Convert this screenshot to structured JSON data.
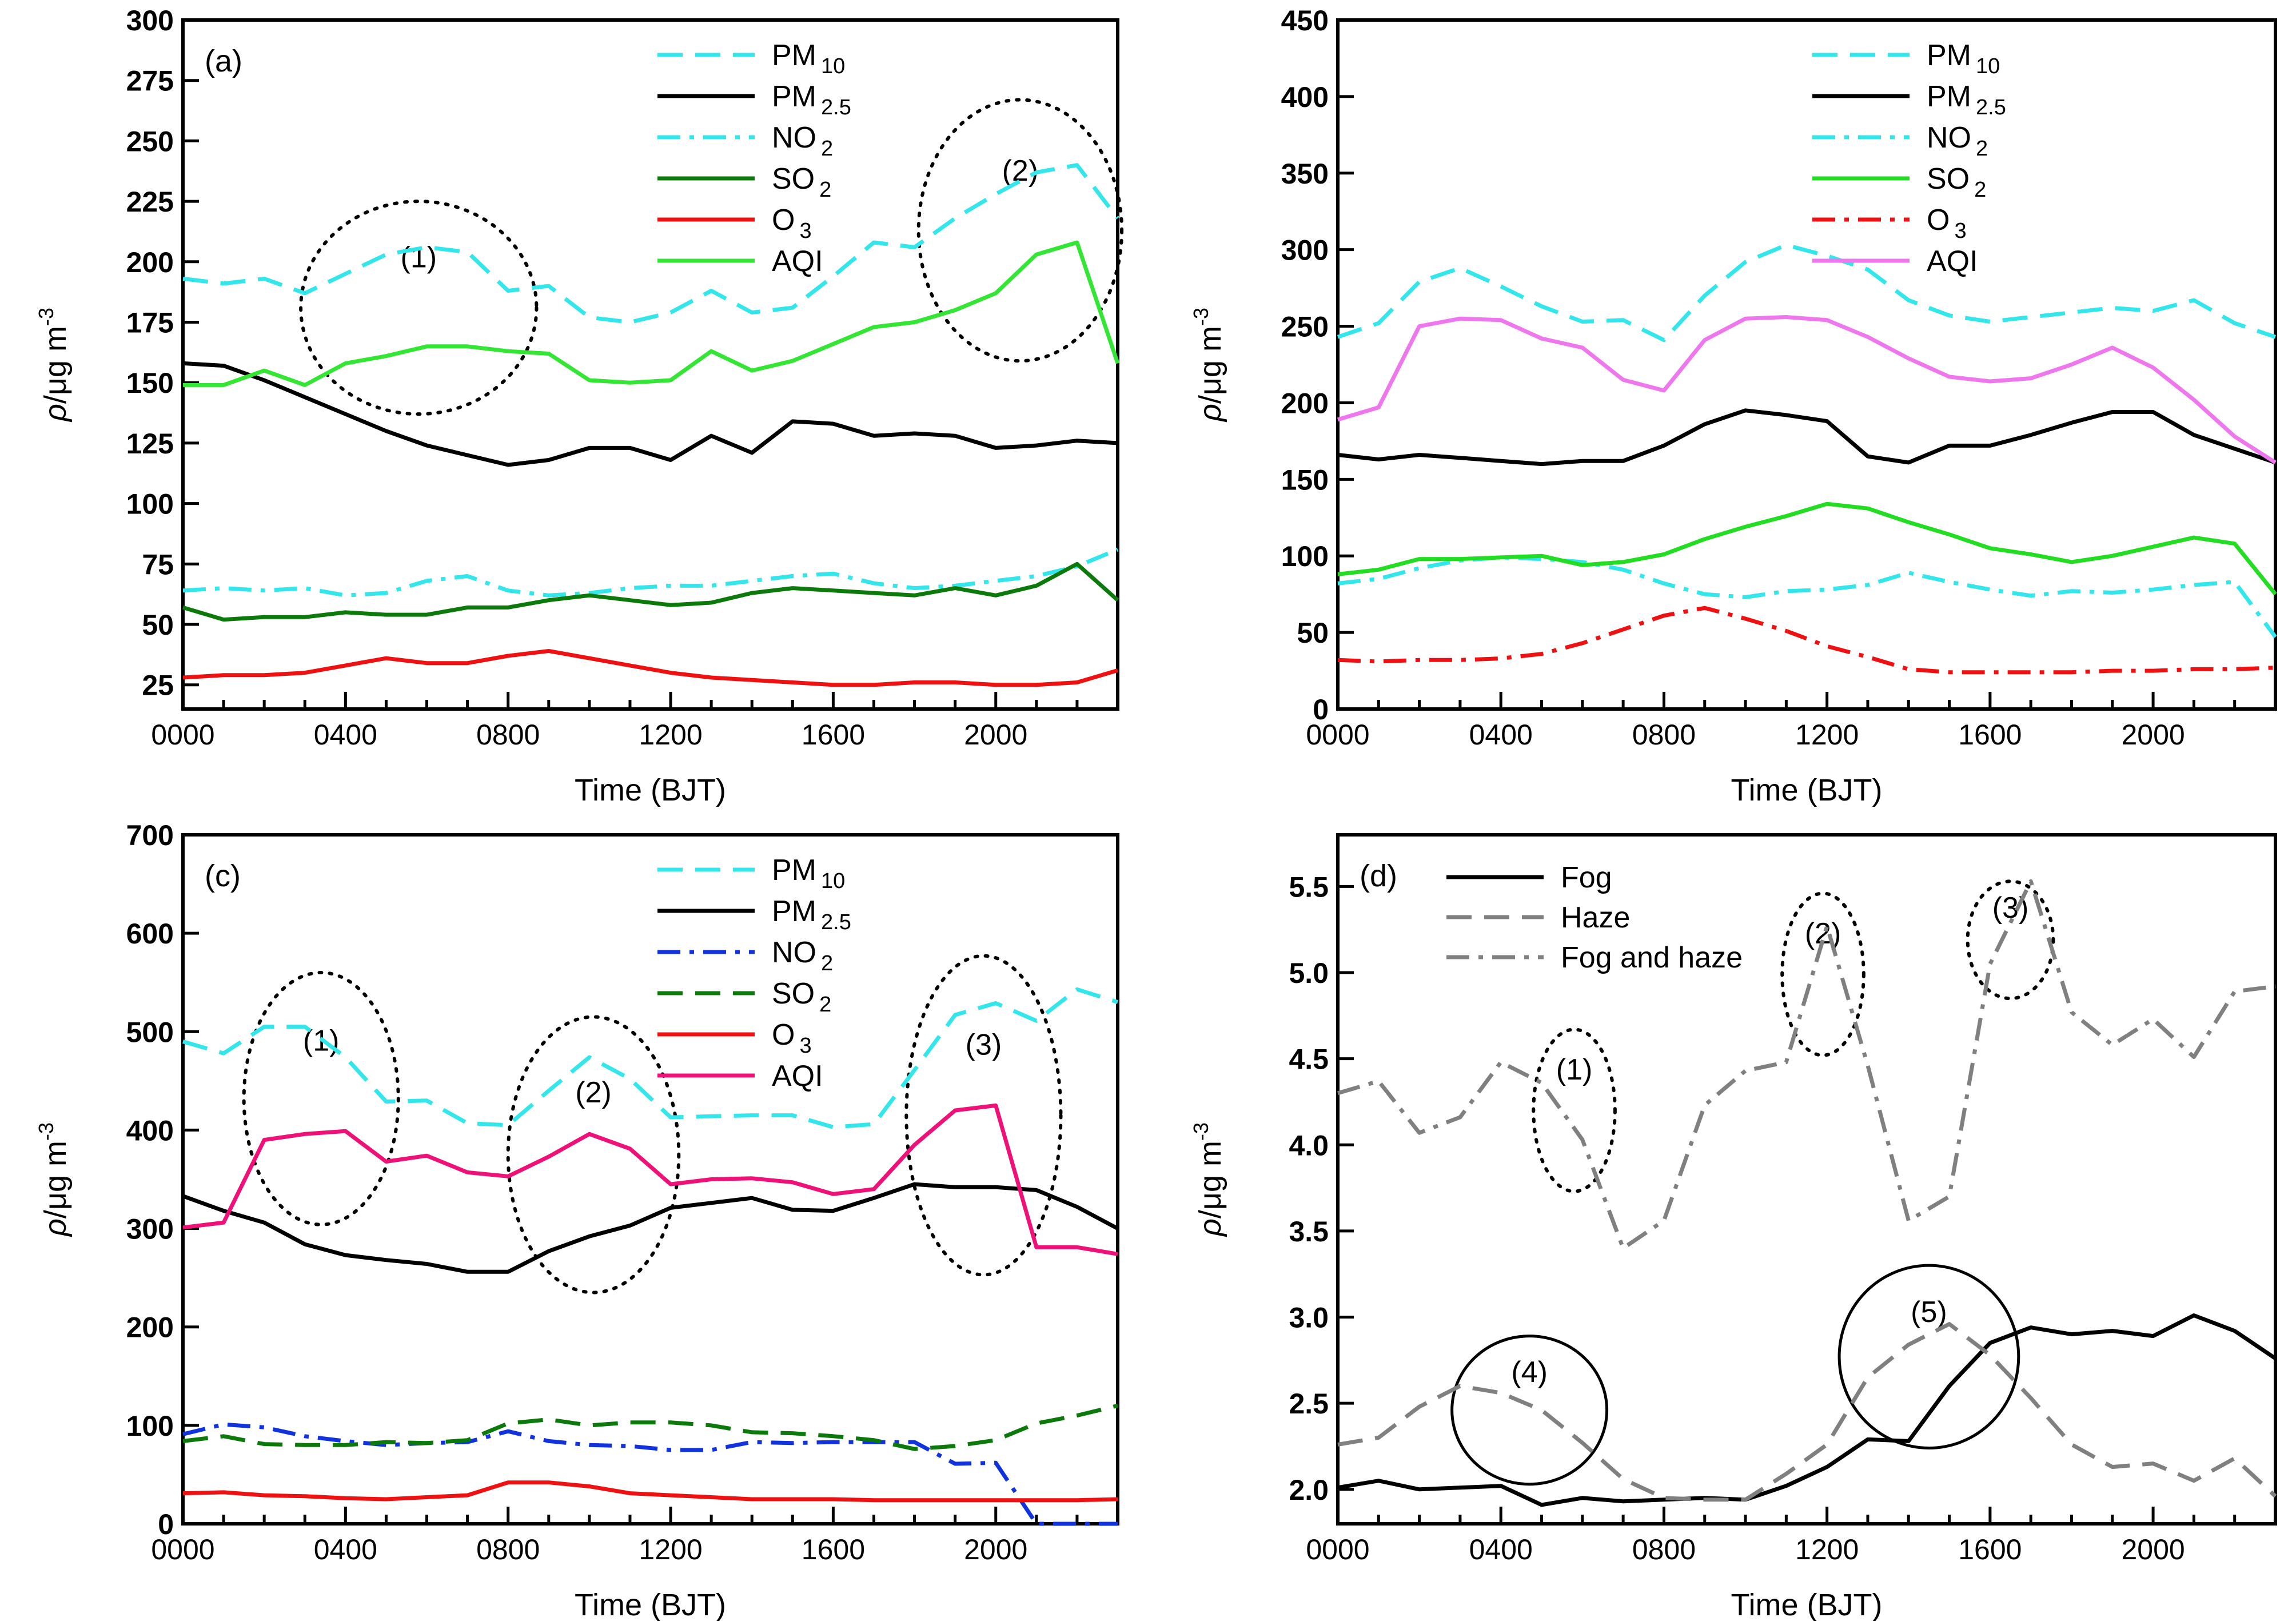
{
  "figure": {
    "panels_meta": "four line-chart panels in a 2x2 grid"
  },
  "chart_data": [
    {
      "id": "a",
      "type": "line",
      "panel_label": "(a)",
      "xlabel": "Time (BJT)",
      "ylabel_main": "ρ/μg m",
      "ylabel_sup": "-3",
      "xticks": [
        "0000",
        "0400",
        "0800",
        "1200",
        "1600",
        "2000"
      ],
      "xtick_values": [
        0,
        4,
        8,
        12,
        16,
        20
      ],
      "xlim": [
        0,
        23
      ],
      "ylim": [
        15,
        300
      ],
      "yticks": [
        25,
        50,
        75,
        100,
        125,
        150,
        175,
        200,
        225,
        250,
        275,
        300
      ],
      "x": [
        0,
        1,
        2,
        3,
        4,
        5,
        6,
        7,
        8,
        9,
        10,
        11,
        12,
        13,
        14,
        15,
        16,
        17,
        18,
        19,
        20,
        21,
        22,
        23
      ],
      "series": [
        {
          "name_main": "PM",
          "name_sub": "10",
          "color": "#33E6EC",
          "dash": "dash",
          "values": [
            193,
            191,
            193,
            187,
            195,
            203,
            206,
            204,
            188,
            190,
            177,
            175,
            179,
            188,
            179,
            181,
            194,
            208,
            206,
            218,
            228,
            237,
            240,
            218
          ]
        },
        {
          "name_main": "PM",
          "name_sub": "2.5",
          "color": "#000000",
          "dash": "solid",
          "values": [
            158,
            157,
            151,
            144,
            137,
            130,
            124,
            120,
            116,
            118,
            123,
            123,
            118,
            128,
            121,
            134,
            133,
            128,
            129,
            128,
            123,
            124,
            126,
            125
          ]
        },
        {
          "name_main": "NO",
          "name_sub": "2",
          "color": "#33E6EC",
          "dash": "dashdot",
          "values": [
            64,
            65,
            64,
            65,
            62,
            63,
            68,
            70,
            64,
            62,
            63,
            65,
            66,
            66,
            68,
            70,
            71,
            67,
            65,
            66,
            68,
            70,
            74,
            81
          ]
        },
        {
          "name_main": "SO",
          "name_sub": "2",
          "color": "#0B7A0B",
          "dash": "solid",
          "values": [
            57,
            52,
            53,
            53,
            55,
            54,
            54,
            57,
            57,
            60,
            62,
            60,
            58,
            59,
            63,
            65,
            64,
            63,
            62,
            65,
            62,
            66,
            75,
            60
          ]
        },
        {
          "name_main": "O",
          "name_sub": "3",
          "color": "#EE1111",
          "dash": "solid",
          "values": [
            28,
            29,
            29,
            30,
            33,
            36,
            34,
            34,
            37,
            39,
            36,
            33,
            30,
            28,
            27,
            26,
            25,
            25,
            26,
            26,
            25,
            25,
            26,
            31
          ]
        },
        {
          "name_main": "AQI",
          "name_sub": "",
          "color": "#33E633",
          "dash": "solid",
          "values": [
            149,
            149,
            155,
            149,
            158,
            161,
            165,
            165,
            163,
            162,
            151,
            150,
            151,
            163,
            155,
            159,
            166,
            173,
            175,
            180,
            187,
            203,
            208,
            158
          ]
        }
      ],
      "annotations": [
        {
          "label": "(1)",
          "style": "dotted",
          "cx": 5.8,
          "cy": 181,
          "rx": 2.9,
          "ry": 44
        },
        {
          "label": "(2)",
          "style": "dotted",
          "cx": 20.6,
          "cy": 213,
          "rx": 2.5,
          "ry": 54
        }
      ]
    },
    {
      "id": "b",
      "type": "line",
      "panel_label": "",
      "xlabel": "Time (BJT)",
      "ylabel_main": "ρ/μg m",
      "ylabel_sup": "-3",
      "xticks": [
        "0000",
        "0400",
        "0800",
        "1200",
        "1600",
        "2000"
      ],
      "xtick_values": [
        0,
        4,
        8,
        12,
        16,
        20
      ],
      "xlim": [
        0,
        23
      ],
      "ylim": [
        0,
        450
      ],
      "yticks": [
        0,
        50,
        100,
        150,
        200,
        250,
        300,
        350,
        400,
        450
      ],
      "x": [
        0,
        1,
        2,
        3,
        4,
        5,
        6,
        7,
        8,
        9,
        10,
        11,
        12,
        13,
        14,
        15,
        16,
        17,
        18,
        19,
        20,
        21,
        22,
        23
      ],
      "series": [
        {
          "name_main": "PM",
          "name_sub": "10",
          "color": "#33E6EC",
          "dash": "dash",
          "values": [
            243,
            252,
            279,
            288,
            276,
            263,
            253,
            254,
            241,
            270,
            292,
            303,
            296,
            287,
            267,
            257,
            253,
            256,
            259,
            262,
            260,
            267,
            252,
            243
          ]
        },
        {
          "name_main": "PM",
          "name_sub": "2.5",
          "color": "#000000",
          "dash": "solid",
          "values": [
            166,
            163,
            166,
            164,
            162,
            160,
            162,
            162,
            172,
            186,
            195,
            192,
            188,
            165,
            161,
            172,
            172,
            179,
            187,
            194,
            194,
            179,
            170,
            161
          ]
        },
        {
          "name_main": "NO",
          "name_sub": "2",
          "color": "#33E6EC",
          "dash": "dashdot",
          "values": [
            82,
            85,
            92,
            97,
            99,
            98,
            96,
            91,
            82,
            75,
            73,
            77,
            78,
            81,
            89,
            83,
            78,
            74,
            77,
            76,
            78,
            81,
            83,
            47
          ]
        },
        {
          "name_main": "SO",
          "name_sub": "2",
          "color": "#22DD22",
          "dash": "solid",
          "values": [
            88,
            91,
            98,
            98,
            99,
            100,
            94,
            96,
            101,
            111,
            119,
            126,
            134,
            131,
            122,
            114,
            105,
            101,
            96,
            100,
            106,
            112,
            108,
            75
          ]
        },
        {
          "name_main": "O",
          "name_sub": "3",
          "color": "#EE1111",
          "dash": "dashdot",
          "values": [
            32,
            31,
            32,
            32,
            33,
            36,
            43,
            52,
            61,
            66,
            59,
            51,
            41,
            34,
            26,
            24,
            24,
            24,
            24,
            25,
            25,
            26,
            26,
            27
          ]
        },
        {
          "name_main": "AQI",
          "name_sub": "",
          "color": "#EE77EE",
          "dash": "solid",
          "values": [
            189,
            197,
            250,
            255,
            254,
            242,
            236,
            215,
            208,
            241,
            255,
            256,
            254,
            243,
            229,
            217,
            214,
            216,
            225,
            236,
            223,
            202,
            178,
            161
          ]
        }
      ],
      "annotations": []
    },
    {
      "id": "c",
      "type": "line",
      "panel_label": "(c)",
      "xlabel": "Time (BJT)",
      "ylabel_main": "ρ/μg m",
      "ylabel_sup": "-3",
      "xticks": [
        "0000",
        "0400",
        "0800",
        "1200",
        "1600",
        "2000"
      ],
      "xtick_values": [
        0,
        4,
        8,
        12,
        16,
        20
      ],
      "xlim": [
        0,
        23
      ],
      "ylim": [
        0,
        700
      ],
      "yticks": [
        0,
        100,
        200,
        300,
        400,
        500,
        600,
        700
      ],
      "x": [
        0,
        1,
        2,
        3,
        4,
        5,
        6,
        7,
        8,
        9,
        10,
        11,
        12,
        13,
        14,
        15,
        16,
        17,
        18,
        19,
        20,
        21,
        22,
        23
      ],
      "series": [
        {
          "name_main": "PM",
          "name_sub": "10",
          "color": "#33E6EC",
          "dash": "dash",
          "values": [
            490,
            478,
            505,
            505,
            474,
            429,
            430,
            407,
            405,
            440,
            474,
            452,
            413,
            414,
            415,
            415,
            403,
            406,
            461,
            517,
            529,
            511,
            543,
            530
          ]
        },
        {
          "name_main": "PM",
          "name_sub": "2.5",
          "color": "#000000",
          "dash": "solid",
          "values": [
            333,
            318,
            306,
            284,
            273,
            268,
            264,
            256,
            256,
            277,
            292,
            303,
            321,
            326,
            331,
            319,
            318,
            331,
            345,
            342,
            342,
            339,
            322,
            300
          ]
        },
        {
          "name_main": "NO",
          "name_sub": "2",
          "color": "#1133DD",
          "dash": "dashdot",
          "values": [
            91,
            101,
            98,
            89,
            84,
            80,
            82,
            83,
            94,
            84,
            80,
            79,
            75,
            75,
            83,
            82,
            83,
            83,
            83,
            61,
            62,
            0,
            0,
            0
          ]
        },
        {
          "name_main": "SO",
          "name_sub": "2",
          "color": "#0B7A0B",
          "dash": "dash",
          "values": [
            84,
            89,
            81,
            80,
            80,
            83,
            82,
            85,
            102,
            106,
            100,
            103,
            103,
            100,
            93,
            92,
            89,
            85,
            76,
            79,
            85,
            102,
            110,
            120
          ]
        },
        {
          "name_main": "O",
          "name_sub": "3",
          "color": "#EE1111",
          "dash": "solid",
          "values": [
            31,
            32,
            29,
            28,
            26,
            25,
            27,
            29,
            42,
            42,
            38,
            31,
            29,
            27,
            25,
            25,
            25,
            24,
            24,
            24,
            24,
            24,
            24,
            25
          ]
        },
        {
          "name_main": "AQI",
          "name_sub": "",
          "color": "#EE1177",
          "dash": "solid",
          "values": [
            301,
            306,
            390,
            396,
            399,
            368,
            374,
            357,
            353,
            373,
            396,
            381,
            345,
            350,
            351,
            347,
            335,
            340,
            385,
            420,
            425,
            281,
            281,
            274
          ]
        }
      ],
      "annotations": [
        {
          "label": "(1)",
          "style": "dotted",
          "cx": 3.4,
          "cy": 432,
          "rx": 1.9,
          "ry": 128
        },
        {
          "label": "(2)",
          "style": "dotted",
          "cx": 10.1,
          "cy": 375,
          "rx": 2.1,
          "ry": 140
        },
        {
          "label": "(3)",
          "style": "dotted",
          "cx": 19.7,
          "cy": 415,
          "rx": 1.9,
          "ry": 162
        }
      ]
    },
    {
      "id": "d",
      "type": "line",
      "panel_label": "(d)",
      "xlabel": "Time (BJT)",
      "ylabel_main": "ρ/μg m",
      "ylabel_sup": "-3",
      "xticks": [
        "0000",
        "0400",
        "0800",
        "1200",
        "1600",
        "2000"
      ],
      "xtick_values": [
        0,
        4,
        8,
        12,
        16,
        20
      ],
      "xlim": [
        0,
        23
      ],
      "ylim": [
        1.8,
        5.8
      ],
      "yticks": [
        "2.0",
        "2.5",
        "3.0",
        "3.5",
        "4.0",
        "4.5",
        "5.0",
        "5.5"
      ],
      "ytick_values": [
        2.0,
        2.5,
        3.0,
        3.5,
        4.0,
        4.5,
        5.0,
        5.5
      ],
      "x": [
        0,
        1,
        2,
        3,
        4,
        5,
        6,
        7,
        8,
        9,
        10,
        11,
        12,
        13,
        14,
        15,
        16,
        17,
        18,
        19,
        20,
        21,
        22,
        23
      ],
      "series": [
        {
          "name_main": "Fog",
          "name_sub": "",
          "color": "#000000",
          "dash": "solid",
          "values": [
            2.01,
            2.05,
            2.0,
            2.01,
            2.02,
            1.91,
            1.95,
            1.93,
            1.94,
            1.95,
            1.94,
            2.02,
            2.13,
            2.29,
            2.28,
            2.6,
            2.85,
            2.94,
            2.9,
            2.92,
            2.89,
            3.01,
            2.92,
            2.76
          ]
        },
        {
          "name_main": "Haze",
          "name_sub": "",
          "color": "#808080",
          "dash": "dash",
          "values": [
            2.26,
            2.3,
            2.48,
            2.6,
            2.56,
            2.46,
            2.27,
            2.06,
            1.95,
            1.94,
            1.94,
            2.09,
            2.26,
            2.65,
            2.84,
            2.96,
            2.78,
            2.53,
            2.26,
            2.13,
            2.15,
            2.05,
            2.18,
            1.96
          ]
        },
        {
          "name_main": "Fog and haze",
          "name_sub": "",
          "color": "#808080",
          "dash": "dashdot",
          "values": [
            4.3,
            4.37,
            4.07,
            4.16,
            4.48,
            4.36,
            4.03,
            3.4,
            3.56,
            4.23,
            4.43,
            4.48,
            5.27,
            4.46,
            3.56,
            3.7,
            5.05,
            5.53,
            4.77,
            4.58,
            4.73,
            4.51,
            4.89,
            4.92
          ]
        }
      ],
      "annotations": [
        {
          "label": "(1)",
          "style": "dotted",
          "cx": 5.8,
          "cy": 4.2,
          "rx": 1.0,
          "ry": 0.47
        },
        {
          "label": "(2)",
          "style": "dotted",
          "cx": 11.9,
          "cy": 4.99,
          "rx": 1.0,
          "ry": 0.47
        },
        {
          "label": "(3)",
          "style": "dotted",
          "cx": 16.5,
          "cy": 5.19,
          "rx": 1.05,
          "ry": 0.34
        },
        {
          "label": "(4)",
          "style": "solid",
          "cx": 4.7,
          "cy": 2.46,
          "rx": 1.9,
          "ry": 0.43
        },
        {
          "label": "(5)",
          "style": "solid",
          "cx": 14.5,
          "cy": 2.77,
          "rx": 2.2,
          "ry": 0.53
        }
      ]
    }
  ]
}
